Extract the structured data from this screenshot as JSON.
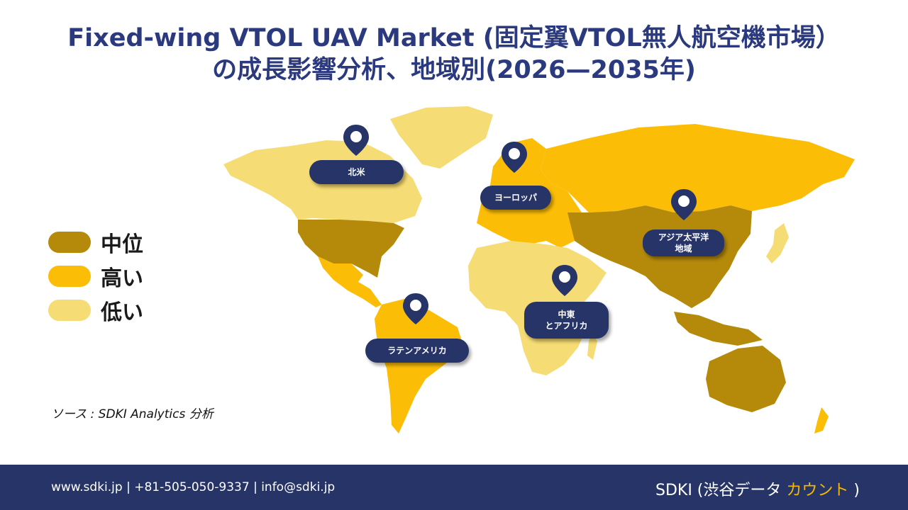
{
  "title": {
    "line1": "Fixed-wing VTOL UAV Market (固定翼VTOL無人航空機市場）",
    "line2": "の成長影響分析、地域別(2026—2035年)"
  },
  "legend": {
    "items": [
      {
        "label": "中位",
        "color": "#b58a0b"
      },
      {
        "label": "高い",
        "color": "#fbbd06"
      },
      {
        "label": "低い",
        "color": "#f6dc74"
      }
    ]
  },
  "regions": {
    "north_america": "北米",
    "europe": "ヨーロッパ",
    "asia_pacific": "アジア太平洋\n地域",
    "middle_east_africa": "中東\nとアフリカ",
    "latin_america": "ラテンアメリカ"
  },
  "colors": {
    "medium": "#b58a0b",
    "high": "#fbbd06",
    "low": "#f6dc74",
    "navy": "#263468",
    "accent": "#f5b800"
  },
  "source": "ソース : SDKI Analytics 分析",
  "footer": {
    "contact": "www.sdki.jp | +81-505-050-9337 | info@sdki.jp",
    "brand_main": "SDKI (渋谷データ",
    "brand_accent": "カウント",
    "brand_close": ")"
  }
}
